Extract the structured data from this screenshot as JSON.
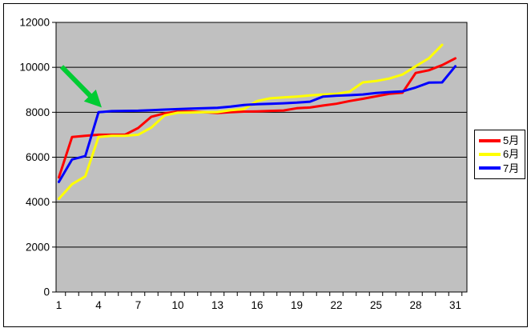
{
  "chart_data": {
    "type": "line",
    "title": "",
    "xlabel": "",
    "ylabel": "",
    "x": [
      1,
      2,
      3,
      4,
      5,
      6,
      7,
      8,
      9,
      10,
      11,
      12,
      13,
      14,
      15,
      16,
      17,
      18,
      19,
      20,
      21,
      22,
      23,
      24,
      25,
      26,
      27,
      28,
      29,
      30,
      31
    ],
    "x_tick_labels": [
      "1",
      "4",
      "7",
      "10",
      "13",
      "16",
      "19",
      "22",
      "25",
      "28",
      "31"
    ],
    "y_ticks": [
      0,
      2000,
      4000,
      6000,
      8000,
      10000,
      12000
    ],
    "y_tick_labels": [
      "0",
      "2000",
      "4000",
      "6000",
      "8000",
      "10000",
      "12000"
    ],
    "ylim": [
      0,
      12000
    ],
    "grid": true,
    "plot_bg_color": "#C0C0C0",
    "gridline_color": "#000000",
    "legend_position": "right",
    "series": [
      {
        "name": "5月",
        "color": "#FF0000",
        "values": [
          5100,
          6900,
          6950,
          7000,
          7000,
          7000,
          7300,
          7800,
          7950,
          8040,
          8040,
          8000,
          7970,
          8000,
          8030,
          8040,
          8060,
          8080,
          8180,
          8210,
          8300,
          8380,
          8500,
          8600,
          8710,
          8820,
          8870,
          9750,
          9870,
          10100,
          10400
        ]
      },
      {
        "name": "6月",
        "color": "#FFFF00",
        "values": [
          4150,
          4800,
          5150,
          6900,
          6950,
          6950,
          7000,
          7320,
          7860,
          7980,
          7990,
          8000,
          8010,
          8090,
          8140,
          8500,
          8620,
          8660,
          8700,
          8750,
          8790,
          8820,
          8920,
          9330,
          9390,
          9500,
          9680,
          10050,
          10400,
          11000
        ]
      },
      {
        "name": "7月",
        "color": "#0000FF",
        "values": [
          4900,
          5900,
          6050,
          8000,
          8050,
          8060,
          8070,
          8090,
          8120,
          8140,
          8160,
          8180,
          8200,
          8250,
          8320,
          8360,
          8380,
          8400,
          8430,
          8470,
          8700,
          8740,
          8760,
          8790,
          8860,
          8900,
          8930,
          9100,
          9320,
          9330,
          10050
        ]
      }
    ],
    "annotation": {
      "type": "arrow",
      "color": "#00CC33",
      "points_to_series": "7月",
      "points_to_day": 4,
      "points_to_value": 8000
    }
  }
}
